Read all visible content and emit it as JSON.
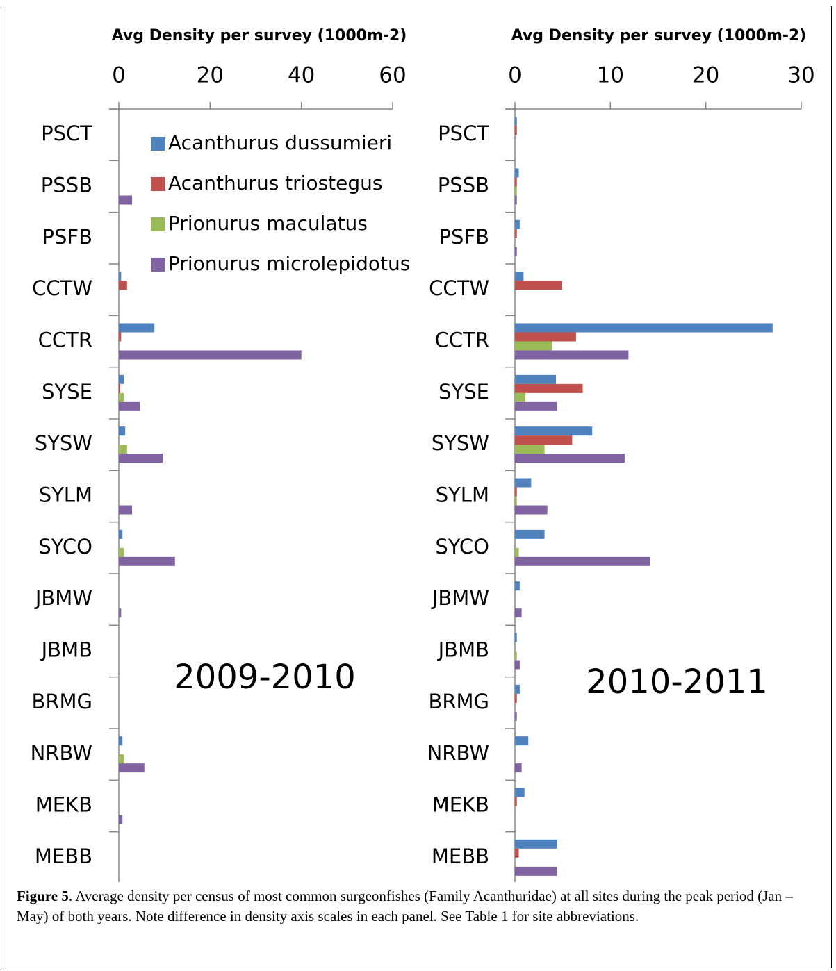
{
  "chart_data": [
    {
      "type": "hbar",
      "title": "Avg Density per survey (1000m-2)",
      "annotation": "2009-2010",
      "legend": "upper right",
      "categories": [
        "PSCT",
        "PSSB",
        "PSFB",
        "CCTW",
        "CCTR",
        "SYSE",
        "SYSW",
        "SYLM",
        "SYCO",
        "JBMW",
        "JBMB",
        "BRMG",
        "NRBW",
        "MEKB",
        "MEBB"
      ],
      "xlim": [
        0,
        60
      ],
      "xticks": [
        0,
        20,
        40,
        60
      ],
      "series": [
        {
          "name": "Acanthurus dussumieri",
          "color": "#4f81bd",
          "values": [
            0,
            0,
            0,
            0.5,
            7.8,
            1.1,
            1.4,
            0,
            0.8,
            0,
            0,
            0,
            0.8,
            0,
            0
          ]
        },
        {
          "name": "Acanthurus triostegus",
          "color": "#c0504d",
          "values": [
            0,
            0,
            0,
            1.8,
            0.5,
            0.3,
            0,
            0,
            0,
            0,
            0,
            0,
            0,
            0,
            0
          ]
        },
        {
          "name": "Prionurus maculatus",
          "color": "#9bbb59",
          "values": [
            0,
            0,
            0,
            0,
            0,
            1.1,
            1.8,
            0,
            1.1,
            0,
            0,
            0,
            1.1,
            0,
            0
          ]
        },
        {
          "name": "Prionurus microlepidotus",
          "color": "#8064a2",
          "values": [
            0,
            2.9,
            0,
            0,
            40,
            4.6,
            9.6,
            2.9,
            12.3,
            0.5,
            0,
            0,
            5.6,
            0.8,
            0
          ]
        }
      ]
    },
    {
      "type": "hbar",
      "title": "Avg Density per survey (1000m-2)",
      "annotation": "2010-2011",
      "categories": [
        "PSCT",
        "PSSB",
        "PSFB",
        "CCTW",
        "CCTR",
        "SYSE",
        "SYSW",
        "SYLM",
        "SYCO",
        "JBMW",
        "JBMB",
        "BRMG",
        "NRBW",
        "MEKB",
        "MEBB"
      ],
      "xlim": [
        0,
        30
      ],
      "xticks": [
        0,
        10,
        20,
        30
      ],
      "series": [
        {
          "name": "Acanthurus dussumieri",
          "color": "#4f81bd",
          "values": [
            0.2,
            0.4,
            0.5,
            0.9,
            27,
            4.3,
            8.1,
            1.7,
            3.1,
            0.5,
            0.2,
            0.5,
            1.4,
            1.0,
            4.4
          ]
        },
        {
          "name": "Acanthurus triostegus",
          "color": "#c0504d",
          "values": [
            0.2,
            0.2,
            0.2,
            4.9,
            6.4,
            7.1,
            6.0,
            0.2,
            0,
            0,
            0,
            0.2,
            0,
            0.2,
            0.4
          ]
        },
        {
          "name": "Prionurus maculatus",
          "color": "#9bbb59",
          "values": [
            0,
            0.2,
            0,
            0,
            3.9,
            1.1,
            3.1,
            0.2,
            0.4,
            0,
            0.2,
            0,
            0,
            0,
            0
          ]
        },
        {
          "name": "Prionurus microlepidotus",
          "color": "#8064a2",
          "values": [
            0,
            0.2,
            0.2,
            0,
            11.9,
            4.4,
            11.5,
            3.4,
            14.2,
            0.7,
            0.5,
            0.2,
            0.7,
            0,
            4.4
          ]
        }
      ]
    }
  ],
  "caption": {
    "label": "Figure 5",
    "text": ". Average density per census of most common surgeonfishes (Family Acanthuridae) at all sites during the peak period (Jan – May) of both years. Note difference in density axis scales in each panel. See Table 1 for site abbreviations."
  }
}
